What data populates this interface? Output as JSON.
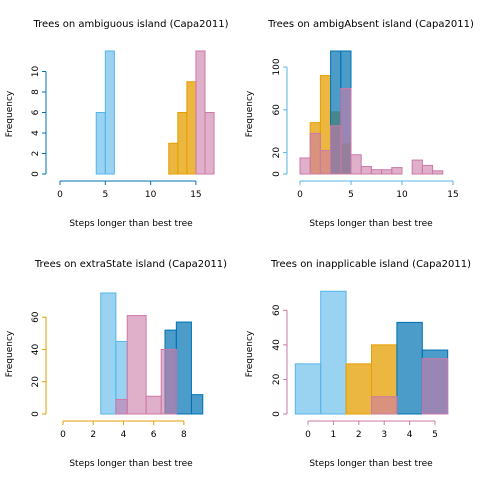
{
  "colors": {
    "ambiguous": "#0072B2",
    "ambigAbsent": "#56B4E9",
    "extraState": "#E69F00",
    "inapplicable": "#CC79A7",
    "fill_orange": "#E69F00",
    "fill_purple": "#CC79A7",
    "fill_blue": "#0072B2",
    "fill_light": "#56B4E9"
  },
  "chart_data": [
    {
      "type": "bar",
      "title": "Trees on ambiguous island (Capa2011)",
      "xlabel": "Steps longer than best tree",
      "ylabel": "Frequency",
      "xlim": [
        0,
        16
      ],
      "ylim": [
        0,
        12
      ],
      "xticks": [
        0,
        5,
        10,
        15
      ],
      "yticks": [
        0,
        2,
        4,
        6,
        8,
        10
      ],
      "series": [
        {
          "color": "#56B4E9",
          "alpha": 0.6,
          "bins": [
            [
              4,
              5,
              6
            ],
            [
              5,
              6,
              12
            ]
          ]
        },
        {
          "color": "#E69F00",
          "alpha": 0.75,
          "bins": [
            [
              12,
              13,
              3
            ],
            [
              13,
              14,
              6
            ],
            [
              14,
              15,
              9
            ]
          ]
        },
        {
          "color": "#CC79A7",
          "alpha": 0.6,
          "bins": [
            [
              0,
              12,
              0
            ],
            [
              12,
              13,
              0
            ],
            [
              13,
              14,
              0
            ],
            [
              14,
              15,
              0
            ],
            [
              15,
              16,
              12
            ],
            [
              16,
              17,
              6
            ]
          ]
        }
      ]
    },
    {
      "type": "bar",
      "title": "Trees on ambigAbsent island (Capa2011)",
      "xlabel": "Steps longer than best tree",
      "ylabel": "Frequency",
      "xlim": [
        0,
        15
      ],
      "ylim": [
        0,
        115
      ],
      "xticks": [
        0,
        5,
        10,
        15
      ],
      "yticks": [
        0,
        20,
        60,
        100
      ],
      "series": [
        {
          "color": "#E69F00",
          "alpha": 0.75,
          "bins": [
            [
              1,
              2,
              48
            ],
            [
              2,
              3,
              92
            ],
            [
              3,
              4,
              58
            ],
            [
              4,
              5,
              28
            ]
          ]
        },
        {
          "color": "#0072B2",
          "alpha": 0.7,
          "bins": [
            [
              3,
              4,
              115
            ],
            [
              4,
              5,
              115
            ]
          ]
        },
        {
          "color": "#CC79A7",
          "alpha": 0.6,
          "bins": [
            [
              0,
              1,
              15
            ],
            [
              1,
              2,
              38
            ],
            [
              2,
              3,
              22
            ],
            [
              3,
              4,
              45
            ],
            [
              4,
              5,
              80
            ],
            [
              5,
              6,
              18
            ],
            [
              6,
              7,
              7
            ],
            [
              7,
              8,
              4
            ],
            [
              8,
              9,
              4
            ],
            [
              9,
              10,
              6
            ],
            [
              10,
              11,
              0
            ],
            [
              11,
              12,
              13
            ],
            [
              12,
              13,
              8
            ],
            [
              13,
              14,
              3
            ]
          ]
        }
      ]
    },
    {
      "type": "bar",
      "title": "Trees on extraState island (Capa2011)",
      "xlabel": "Steps longer than best tree",
      "ylabel": "Frequency",
      "xlim": [
        0,
        9
      ],
      "ylim": [
        0,
        75
      ],
      "xticks": [
        0,
        2,
        4,
        6,
        8
      ],
      "yticks": [
        0,
        20,
        40,
        60
      ],
      "series": [
        {
          "color": "#56B4E9",
          "alpha": 0.6,
          "bins": [
            [
              2.5,
              3.5,
              75
            ],
            [
              3.5,
              4.25,
              45
            ]
          ]
        },
        {
          "color": "#0072B2",
          "alpha": 0.7,
          "bins": [
            [
              6.75,
              7.5,
              52
            ],
            [
              7.5,
              8.5,
              57
            ],
            [
              8.5,
              9.25,
              12
            ]
          ]
        },
        {
          "color": "#CC79A7",
          "alpha": 0.6,
          "bins": [
            [
              -0.5,
              2.5,
              0
            ],
            [
              3.5,
              4.25,
              9
            ],
            [
              4.25,
              5.5,
              61
            ],
            [
              5.5,
              6.5,
              11
            ],
            [
              6.5,
              7.5,
              40
            ]
          ]
        }
      ]
    },
    {
      "type": "bar",
      "title": "Trees on inapplicable island (Capa2011)",
      "xlabel": "Steps longer than best tree",
      "ylabel": "Frequency",
      "xlim": [
        0,
        5
      ],
      "ylim": [
        0,
        70
      ],
      "xticks": [
        0,
        1,
        2,
        3,
        4,
        5
      ],
      "yticks": [
        0,
        20,
        40,
        60
      ],
      "series": [
        {
          "color": "#56B4E9",
          "alpha": 0.6,
          "bins": [
            [
              -0.5,
              0.5,
              29
            ],
            [
              0.5,
              1.5,
              71
            ]
          ]
        },
        {
          "color": "#E69F00",
          "alpha": 0.75,
          "bins": [
            [
              1.5,
              2.5,
              29
            ],
            [
              2.5,
              3.5,
              40
            ]
          ]
        },
        {
          "color": "#0072B2",
          "alpha": 0.7,
          "bins": [
            [
              3.5,
              4.5,
              53
            ],
            [
              4.5,
              5.5,
              37
            ]
          ]
        },
        {
          "color": "#CC79A7",
          "alpha": 0.6,
          "bins": [
            [
              2.5,
              3.5,
              10
            ],
            [
              4.5,
              5.5,
              32
            ]
          ]
        }
      ]
    }
  ]
}
